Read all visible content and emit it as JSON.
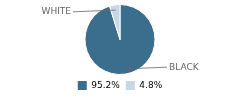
{
  "chart_data": {
    "type": "pie",
    "categories": [
      "BLACK",
      "WHITE"
    ],
    "values": [
      95.2,
      4.8
    ],
    "value_labels": [
      "95.2%",
      "4.8%"
    ],
    "colors": [
      "#3b6e8c",
      "#c5d8e6"
    ],
    "legend": "bottom"
  }
}
